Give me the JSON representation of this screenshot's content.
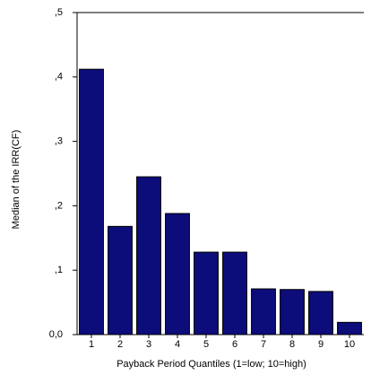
{
  "chart_data": {
    "type": "bar",
    "x_label": "Payback Period Quantiles (1=low; 10=high)",
    "y_label": "Median of the IRR(CF)",
    "categories": [
      "1",
      "2",
      "3",
      "4",
      "5",
      "6",
      "7",
      "8",
      "9",
      "10"
    ],
    "values": [
      0.412,
      0.168,
      0.245,
      0.188,
      0.128,
      0.128,
      0.071,
      0.07,
      0.067,
      0.019
    ],
    "color": "#0c0c7a",
    "ylim": [
      0,
      0.5
    ],
    "yticks": [
      {
        "value": 0,
        "label": "0,0"
      },
      {
        "value": 0.1,
        "label": ",1"
      },
      {
        "value": 0.2,
        "label": ",2"
      },
      {
        "value": 0.3,
        "label": ",3"
      },
      {
        "value": 0.4,
        "label": ",4"
      },
      {
        "value": 0.5,
        "label": ",5"
      }
    ]
  }
}
